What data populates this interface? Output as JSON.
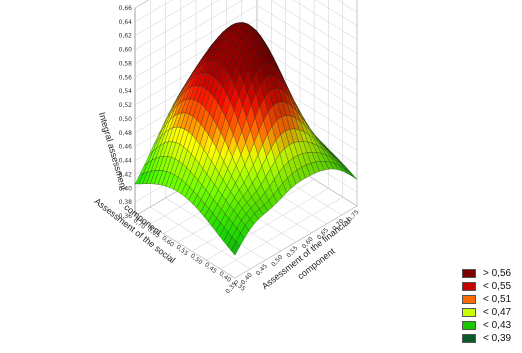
{
  "chart_data": {
    "type": "surface3d",
    "title": "",
    "zlabel": "Integral assessment",
    "xlabel": "Assessment of the financial component",
    "ylabel": "Assessment of the social component",
    "x_ticks": [
      "0,35",
      "0,40",
      "0,45",
      "0,50",
      "0,55",
      "0,60",
      "0,65",
      "0,70",
      "0,75"
    ],
    "y_ticks": [
      "0,35",
      "0,40",
      "0,45",
      "0,50",
      "0,55",
      "0,60",
      "0,65",
      "0,70"
    ],
    "z_ticks": [
      "0,36",
      "0,38",
      "0,40",
      "0,42",
      "0,44",
      "0,46",
      "0,48",
      "0,50",
      "0,52",
      "0,54",
      "0,56",
      "0,58",
      "0,60",
      "0,62",
      "0,64",
      "0,66"
    ],
    "x_range": [
      0.35,
      0.75
    ],
    "y_range": [
      0.35,
      0.7
    ],
    "z_range": [
      0.36,
      0.66
    ],
    "grid": true,
    "legend_position": "bottom-right",
    "legend": [
      {
        "label": "> 0,56",
        "color": "#7a0000"
      },
      {
        "label": "< 0,55",
        "color": "#c40000"
      },
      {
        "label": "< 0,51",
        "color": "#ff6a00"
      },
      {
        "label": "< 0,47",
        "color": "#c8ff00"
      },
      {
        "label": "< 0,43",
        "color": "#19c800"
      },
      {
        "label": "< 0,39",
        "color": "#0a5a2a"
      }
    ],
    "surface_peak": {
      "x": 0.55,
      "y": 0.55,
      "z": 0.62
    }
  }
}
